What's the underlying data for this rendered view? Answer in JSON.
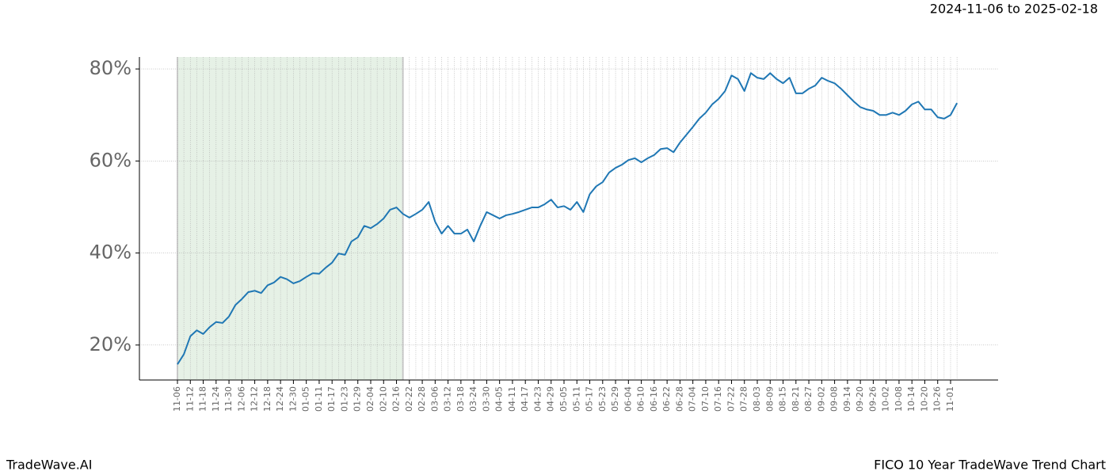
{
  "chart_data": {
    "type": "line",
    "title": "FICO 10 Year TradeWave Trend Chart",
    "subtitle": "2024-11-06 to 2025-02-18",
    "brand": "TradeWave.AI",
    "categories": [
      "11-06",
      null,
      "11-12",
      null,
      "11-18",
      null,
      "11-24",
      null,
      "11-30",
      null,
      "12-06",
      null,
      "12-12",
      null,
      "12-18",
      null,
      "12-24",
      null,
      "12-30",
      null,
      "01-05",
      null,
      "01-11",
      null,
      "01-17",
      null,
      "01-23",
      null,
      "01-29",
      null,
      "02-04",
      null,
      "02-10",
      null,
      "02-16",
      null,
      "02-22",
      null,
      "02-28",
      null,
      "03-06",
      null,
      "03-12",
      null,
      "03-18",
      null,
      "03-24",
      null,
      "03-30",
      null,
      "04-05",
      null,
      "04-11",
      null,
      "04-17",
      null,
      "04-23",
      null,
      "04-29",
      null,
      "05-05",
      null,
      "05-11",
      null,
      "05-17",
      null,
      "05-23",
      null,
      "05-29",
      null,
      "06-04",
      null,
      "06-10",
      null,
      "06-16",
      null,
      "06-22",
      null,
      "06-28",
      null,
      "07-04",
      null,
      "07-10",
      null,
      "07-16",
      null,
      "07-22",
      null,
      "07-28",
      null,
      "08-03",
      null,
      "08-09",
      null,
      "08-15",
      null,
      "08-21",
      null,
      "08-27",
      null,
      "09-02",
      null,
      "09-08",
      null,
      "09-14",
      null,
      "09-20",
      null,
      "09-26",
      null,
      "10-02",
      null,
      "10-08",
      null,
      "10-14",
      null,
      "10-20",
      null,
      "10-26",
      null,
      "11-01",
      null
    ],
    "values": [
      15.8,
      18,
      21.9,
      23.2,
      22.4,
      23.9,
      25,
      24.8,
      26.2,
      28.7,
      30,
      31.5,
      31.8,
      31.3,
      33,
      33.6,
      34.8,
      34.3,
      33.4,
      33.9,
      34.8,
      35.6,
      35.5,
      36.8,
      37.9,
      39.9,
      39.6,
      42.5,
      43.4,
      45.9,
      45.4,
      46.3,
      47.5,
      49.4,
      49.9,
      48.5,
      47.7,
      48.5,
      49.4,
      51.1,
      46.8,
      44.2,
      45.9,
      44.2,
      44.2,
      45.1,
      42.5,
      45.9,
      48.9,
      48.2,
      47.5,
      48.2,
      48.5,
      48.9,
      49.4,
      49.9,
      49.9,
      50.6,
      51.6,
      49.9,
      50.2,
      49.4,
      51.1,
      48.9,
      52.8,
      54.5,
      55.4,
      57.5,
      58.5,
      59.2,
      60.2,
      60.6,
      59.7,
      60.6,
      61.3,
      62.6,
      62.8,
      61.9,
      64,
      65.7,
      67.4,
      69.2,
      70.5,
      72.3,
      73.5,
      75.2,
      78.6,
      77.8,
      75.2,
      79.1,
      78.1,
      77.8,
      79.1,
      77.8,
      76.9,
      78.1,
      74.7,
      74.7,
      75.7,
      76.4,
      78.1,
      77.4,
      76.9,
      75.7,
      74.3,
      72.9,
      71.7,
      71.2,
      70.9,
      70,
      70,
      70.5,
      70,
      70.9,
      72.3,
      72.9,
      71.2,
      71.2,
      69.5,
      69.2,
      70,
      72.6
    ],
    "color": "#1f77b4",
    "highlight": [
      0,
      35
    ],
    "highlight_color": "#e6f1e6",
    "ylim": [
      12.4,
      82.6
    ],
    "yticks": [
      {
        "value": 20,
        "label": "20%"
      },
      {
        "value": 40,
        "label": "40%"
      },
      {
        "value": 60,
        "label": "60%"
      },
      {
        "value": 80,
        "label": "80%"
      }
    ],
    "grid": true
  }
}
